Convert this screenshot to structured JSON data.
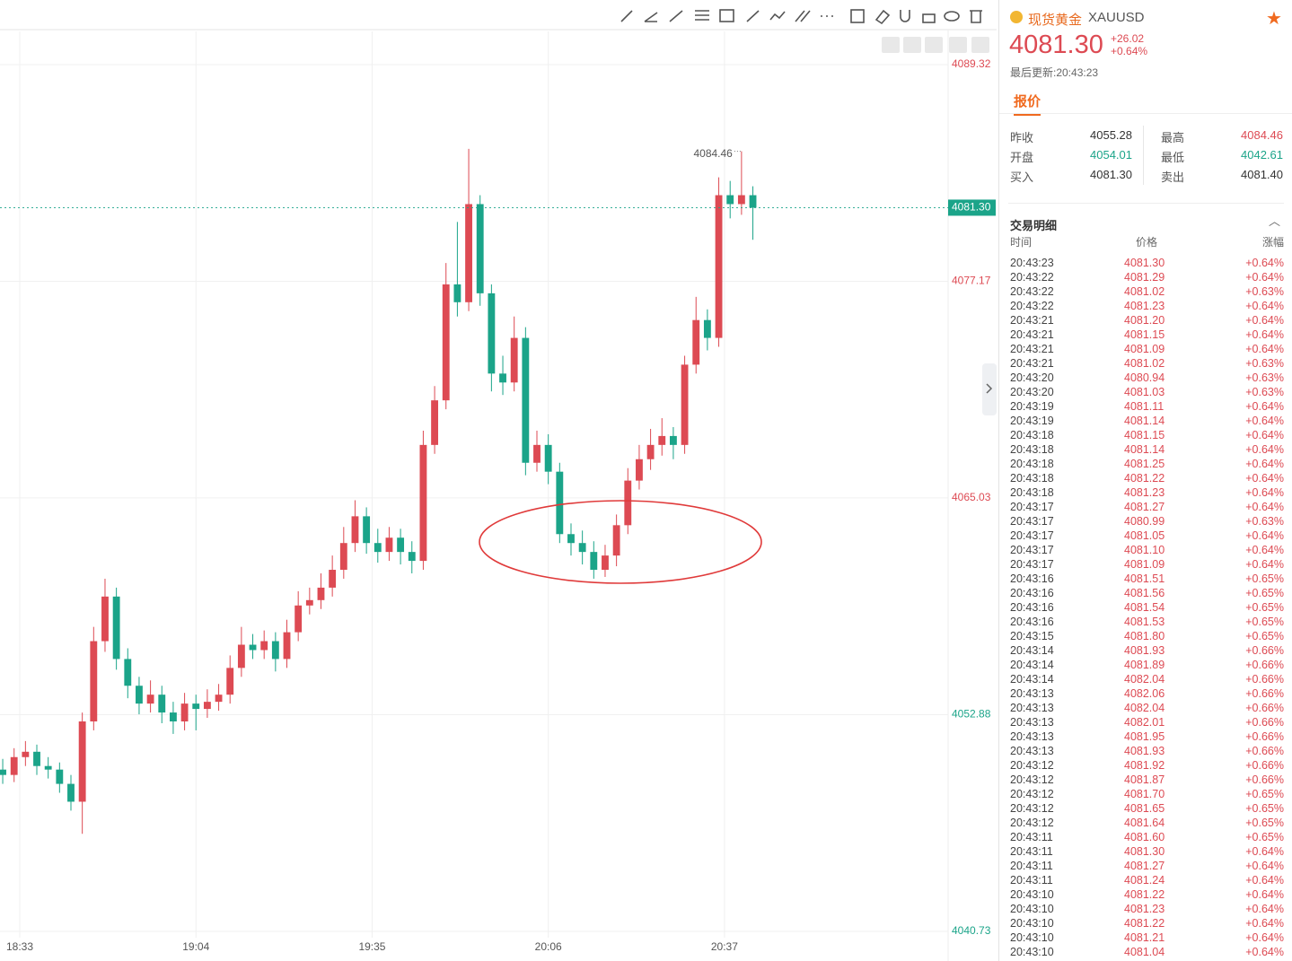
{
  "chart_data": {
    "type": "candlestick",
    "open": [
      4049.8,
      4049.5,
      4050.5,
      4050.8,
      4050.0,
      4049.8,
      4049.0,
      4048.0,
      4052.5,
      4057.0,
      4059.5,
      4056.0,
      4054.5,
      4053.5,
      4054.0,
      4053.0,
      4052.5,
      4053.5,
      4053.2,
      4053.6,
      4054.0,
      4055.5,
      4056.8,
      4056.5,
      4057.0,
      4056.0,
      4057.5,
      4059.0,
      4059.3,
      4060.0,
      4061.0,
      4062.5,
      4064.0,
      4062.5,
      4062.0,
      4062.8,
      4062.0,
      4061.5,
      4068.0,
      4070.5,
      4077.0,
      4076.0,
      4081.5,
      4076.5,
      4072.0,
      4071.5,
      4074.0,
      4067.0,
      4068.0,
      4066.5,
      4063.0,
      4062.5,
      4062.0,
      4061.0,
      4061.8,
      4063.5,
      4066.0,
      4067.2,
      4068.0,
      4068.5,
      4068.0,
      4072.5,
      4075.0,
      4074.0,
      4082.0,
      4081.5,
      4082.0
    ],
    "high": [
      4050.4,
      4051.0,
      4051.4,
      4051.2,
      4050.5,
      4050.2,
      4049.5,
      4053.0,
      4057.8,
      4060.5,
      4060.0,
      4056.6,
      4055.0,
      4054.8,
      4054.5,
      4053.6,
      4054.1,
      4054.0,
      4054.3,
      4054.6,
      4056.2,
      4057.8,
      4057.4,
      4057.6,
      4057.5,
      4058.2,
      4059.8,
      4060.0,
      4060.8,
      4061.8,
      4063.4,
      4064.9,
      4064.5,
      4063.3,
      4063.4,
      4063.3,
      4062.6,
      4068.8,
      4071.3,
      4078.2,
      4080.5,
      4084.6,
      4082.0,
      4077.0,
      4073.0,
      4075.2,
      4074.6,
      4068.8,
      4068.6,
      4067.0,
      4063.6,
      4063.2,
      4062.6,
      4062.4,
      4064.1,
      4066.7,
      4068.0,
      4068.9,
      4069.5,
      4069.0,
      4073.0,
      4076.3,
      4075.6,
      4083.0,
      4082.8,
      4084.46,
      4082.5
    ],
    "low": [
      4049.0,
      4049.1,
      4050.0,
      4049.5,
      4049.3,
      4048.5,
      4047.5,
      4046.2,
      4052.0,
      4056.4,
      4055.4,
      4053.8,
      4052.9,
      4053.0,
      4052.4,
      4051.8,
      4052.0,
      4052.0,
      4052.7,
      4053.1,
      4053.5,
      4055.0,
      4056.0,
      4056.0,
      4055.3,
      4055.5,
      4057.0,
      4058.5,
      4058.8,
      4059.5,
      4060.5,
      4062.0,
      4061.9,
      4061.4,
      4061.5,
      4061.3,
      4060.8,
      4061.0,
      4067.5,
      4070.0,
      4075.2,
      4075.5,
      4075.8,
      4071.0,
      4070.8,
      4071.0,
      4066.3,
      4066.5,
      4065.8,
      4062.5,
      4061.8,
      4061.3,
      4060.5,
      4060.6,
      4061.2,
      4063.0,
      4065.5,
      4066.6,
      4067.4,
      4067.2,
      4067.5,
      4072.0,
      4073.3,
      4073.5,
      4080.7,
      4080.9,
      4079.5
    ],
    "close": [
      4049.5,
      4050.5,
      4050.8,
      4050.0,
      4049.8,
      4049.0,
      4048.0,
      4052.5,
      4057.0,
      4059.5,
      4056.0,
      4054.5,
      4053.5,
      4054.0,
      4053.0,
      4052.5,
      4053.5,
      4053.2,
      4053.6,
      4054.0,
      4055.5,
      4056.8,
      4056.5,
      4057.0,
      4056.0,
      4057.5,
      4059.0,
      4059.3,
      4060.0,
      4061.0,
      4062.5,
      4064.0,
      4062.5,
      4062.0,
      4062.8,
      4062.0,
      4061.5,
      4068.0,
      4070.5,
      4077.0,
      4076.0,
      4081.5,
      4076.5,
      4072.0,
      4071.5,
      4074.0,
      4067.0,
      4068.0,
      4066.5,
      4063.0,
      4062.5,
      4062.0,
      4061.0,
      4061.8,
      4063.5,
      4066.0,
      4067.2,
      4068.0,
      4068.5,
      4068.0,
      4072.5,
      4075.0,
      4074.0,
      4082.0,
      4081.5,
      4082.0,
      4081.3
    ],
    "up_color": "#dd4a53",
    "down_color": "#1ba489",
    "xlim": [
      -0.24,
      83.1
    ],
    "xticks": [
      {
        "value": 1.5,
        "label": "18:33"
      },
      {
        "value": 17,
        "label": "19:04"
      },
      {
        "value": 32.5,
        "label": "19:35"
      },
      {
        "value": 48,
        "label": "20:06"
      },
      {
        "value": 63.5,
        "label": "20:37"
      }
    ],
    "ylim": [
      4040.73,
      4089.32
    ],
    "yticks": [
      4089.32,
      4077.17,
      4065.03,
      4052.88,
      4040.73
    ],
    "ytick_colors": [
      "#dd4a53",
      "#dd4a53",
      "#dd4a53",
      "#1ba489",
      "#1ba489"
    ],
    "last_price": {
      "value": 4081.3,
      "label": "4081.30"
    },
    "max_marker": {
      "x": 65,
      "value": 4084.46
    },
    "grid": true
  },
  "quote": {
    "name": "现货黄金",
    "symbol": "XAUUSD",
    "price": "4081.30",
    "change": "+26.02",
    "change_pct": "+0.64%",
    "updated": "最后更新:20:43:23",
    "tab": "报价",
    "stats": [
      [
        "昨收",
        "4055.28",
        "最高",
        "4084.46"
      ],
      [
        "开盘",
        "4054.01",
        "最低",
        "4042.61"
      ],
      [
        "买入",
        "4081.30",
        "卖出",
        "4081.40"
      ]
    ]
  },
  "trades": {
    "title": "交易明细",
    "headers": [
      "时间",
      "价格",
      "涨幅"
    ],
    "rows": [
      [
        "20:43:23",
        "4081.30",
        "+0.64%"
      ],
      [
        "20:43:22",
        "4081.29",
        "+0.64%"
      ],
      [
        "20:43:22",
        "4081.02",
        "+0.63%"
      ],
      [
        "20:43:22",
        "4081.23",
        "+0.64%"
      ],
      [
        "20:43:21",
        "4081.20",
        "+0.64%"
      ],
      [
        "20:43:21",
        "4081.15",
        "+0.64%"
      ],
      [
        "20:43:21",
        "4081.09",
        "+0.64%"
      ],
      [
        "20:43:21",
        "4081.02",
        "+0.63%"
      ],
      [
        "20:43:20",
        "4080.94",
        "+0.63%"
      ],
      [
        "20:43:20",
        "4081.03",
        "+0.63%"
      ],
      [
        "20:43:19",
        "4081.11",
        "+0.64%"
      ],
      [
        "20:43:19",
        "4081.14",
        "+0.64%"
      ],
      [
        "20:43:18",
        "4081.15",
        "+0.64%"
      ],
      [
        "20:43:18",
        "4081.14",
        "+0.64%"
      ],
      [
        "20:43:18",
        "4081.25",
        "+0.64%"
      ],
      [
        "20:43:18",
        "4081.22",
        "+0.64%"
      ],
      [
        "20:43:18",
        "4081.23",
        "+0.64%"
      ],
      [
        "20:43:17",
        "4081.27",
        "+0.64%"
      ],
      [
        "20:43:17",
        "4080.99",
        "+0.63%"
      ],
      [
        "20:43:17",
        "4081.05",
        "+0.64%"
      ],
      [
        "20:43:17",
        "4081.10",
        "+0.64%"
      ],
      [
        "20:43:17",
        "4081.09",
        "+0.64%"
      ],
      [
        "20:43:16",
        "4081.51",
        "+0.65%"
      ],
      [
        "20:43:16",
        "4081.56",
        "+0.65%"
      ],
      [
        "20:43:16",
        "4081.54",
        "+0.65%"
      ],
      [
        "20:43:16",
        "4081.53",
        "+0.65%"
      ],
      [
        "20:43:15",
        "4081.80",
        "+0.65%"
      ],
      [
        "20:43:14",
        "4081.93",
        "+0.66%"
      ],
      [
        "20:43:14",
        "4081.89",
        "+0.66%"
      ],
      [
        "20:43:14",
        "4082.04",
        "+0.66%"
      ],
      [
        "20:43:13",
        "4082.06",
        "+0.66%"
      ],
      [
        "20:43:13",
        "4082.04",
        "+0.66%"
      ],
      [
        "20:43:13",
        "4082.01",
        "+0.66%"
      ],
      [
        "20:43:13",
        "4081.95",
        "+0.66%"
      ],
      [
        "20:43:13",
        "4081.93",
        "+0.66%"
      ],
      [
        "20:43:12",
        "4081.92",
        "+0.66%"
      ],
      [
        "20:43:12",
        "4081.87",
        "+0.66%"
      ],
      [
        "20:43:12",
        "4081.70",
        "+0.65%"
      ],
      [
        "20:43:12",
        "4081.65",
        "+0.65%"
      ],
      [
        "20:43:12",
        "4081.64",
        "+0.65%"
      ],
      [
        "20:43:11",
        "4081.60",
        "+0.65%"
      ],
      [
        "20:43:11",
        "4081.30",
        "+0.64%"
      ],
      [
        "20:43:11",
        "4081.27",
        "+0.64%"
      ],
      [
        "20:43:11",
        "4081.24",
        "+0.64%"
      ],
      [
        "20:43:10",
        "4081.22",
        "+0.64%"
      ],
      [
        "20:43:10",
        "4081.23",
        "+0.64%"
      ],
      [
        "20:43:10",
        "4081.22",
        "+0.64%"
      ],
      [
        "20:43:10",
        "4081.21",
        "+0.64%"
      ],
      [
        "20:43:10",
        "4081.04",
        "+0.64%"
      ]
    ]
  }
}
